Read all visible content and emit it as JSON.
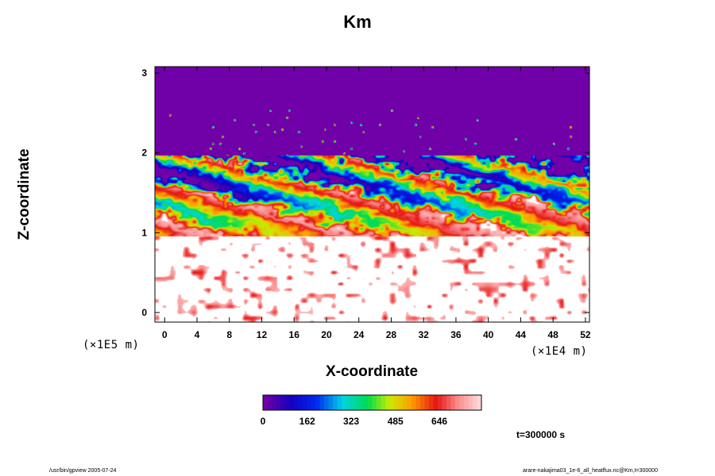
{
  "chart_data": {
    "type": "heatmap",
    "title": "Km",
    "xlabel": "X-coordinate",
    "ylabel": "Z-coordinate",
    "x_unit_label": "(×1E4 m)",
    "y_unit_label": "(×1E5 m)",
    "x_ticks": [
      0,
      4,
      8,
      12,
      16,
      20,
      24,
      28,
      32,
      36,
      40,
      44,
      48,
      52
    ],
    "y_ticks": [
      0,
      1,
      2,
      3
    ],
    "xlim": [
      -1.2,
      52.5
    ],
    "ylim": [
      -0.12,
      3.08
    ],
    "colorbar": {
      "min": 0,
      "max": 800,
      "tick_values": [
        0,
        162,
        323,
        485,
        646
      ],
      "tick_labels": [
        "0",
        "162",
        "323",
        "485",
        "646"
      ]
    },
    "regions": {
      "saturated_top": {
        "z_from": 1.97,
        "z_to": 3.08,
        "value": 0
      },
      "turbulent_layer": {
        "z_from": 0.95,
        "z_to": 1.97
      },
      "lower_patches": {
        "z_from": -0.1,
        "z_to": 0.95
      }
    },
    "time_label": "t=300000 s"
  },
  "footer": {
    "left": "/usr/bin/gpview 2005-07-24",
    "right": "arare-nakajima03_1e-6_all_heatflux.nc@Km,t=300000"
  },
  "colors": {
    "top_region": "#7000a8",
    "background": "#ffffff"
  }
}
